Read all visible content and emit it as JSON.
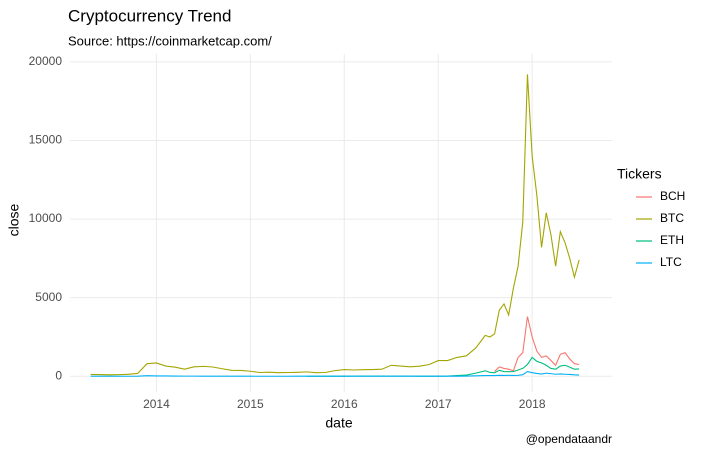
{
  "chart_data": {
    "type": "line",
    "title": "Cryptocurrency Trend",
    "subtitle": "Source: https://coinmarketcap.com/",
    "x_label": "date",
    "y_label": "close",
    "legend_title": "Tickers",
    "legend_position": "right",
    "caption": "@opendataandr",
    "grid": true,
    "x": [
      2013.3,
      2013.4,
      2013.5,
      2013.6,
      2013.7,
      2013.8,
      2013.9,
      2014.0,
      2014.1,
      2014.2,
      2014.3,
      2014.4,
      2014.5,
      2014.6,
      2014.7,
      2014.8,
      2014.9,
      2015.0,
      2015.1,
      2015.2,
      2015.3,
      2015.4,
      2015.5,
      2015.6,
      2015.7,
      2015.8,
      2015.9,
      2016.0,
      2016.1,
      2016.2,
      2016.3,
      2016.4,
      2016.5,
      2016.6,
      2016.7,
      2016.8,
      2016.9,
      2017.0,
      2017.1,
      2017.2,
      2017.3,
      2017.4,
      2017.5,
      2017.55,
      2017.6,
      2017.65,
      2017.7,
      2017.75,
      2017.8,
      2017.85,
      2017.9,
      2017.95,
      2018.0,
      2018.05,
      2018.1,
      2018.15,
      2018.2,
      2018.25,
      2018.3,
      2018.35,
      2018.4,
      2018.45,
      2018.5
    ],
    "xlim": [
      2013.08,
      2018.85
    ],
    "xticks": [
      2014,
      2015,
      2016,
      2017,
      2018
    ],
    "ylim": [
      -1000,
      20500
    ],
    "yticks": [
      0,
      5000,
      10000,
      15000,
      20000
    ],
    "series": [
      {
        "name": "BCH",
        "color": "#f8766d",
        "values": [
          null,
          null,
          null,
          null,
          null,
          null,
          null,
          null,
          null,
          null,
          null,
          null,
          null,
          null,
          null,
          null,
          null,
          null,
          null,
          null,
          null,
          null,
          null,
          null,
          null,
          null,
          null,
          null,
          null,
          null,
          null,
          null,
          null,
          null,
          null,
          null,
          null,
          null,
          null,
          null,
          null,
          null,
          null,
          null,
          300,
          600,
          500,
          450,
          350,
          1200,
          1500,
          3800,
          2500,
          1600,
          1200,
          1300,
          1000,
          700,
          1400,
          1500,
          1100,
          800,
          750
        ]
      },
      {
        "name": "BTC",
        "color": "#a3a500",
        "values": [
          120,
          110,
          90,
          105,
          125,
          180,
          800,
          850,
          650,
          580,
          450,
          600,
          630,
          590,
          480,
          380,
          370,
          320,
          240,
          260,
          230,
          240,
          255,
          280,
          230,
          240,
          360,
          430,
          400,
          420,
          430,
          450,
          700,
          650,
          600,
          640,
          740,
          1000,
          1000,
          1200,
          1300,
          1800,
          2600,
          2500,
          2700,
          4200,
          4600,
          3900,
          5600,
          7000,
          9800,
          19200,
          14000,
          11500,
          8200,
          10400,
          9000,
          7000,
          9200,
          8500,
          7500,
          6300,
          7400
        ]
      },
      {
        "name": "ETH",
        "color": "#00bf7d",
        "values": [
          null,
          null,
          null,
          null,
          null,
          null,
          null,
          null,
          null,
          null,
          null,
          null,
          null,
          null,
          null,
          null,
          null,
          null,
          null,
          null,
          null,
          null,
          null,
          1,
          1,
          1,
          3,
          8,
          10,
          12,
          14,
          12,
          10,
          13,
          10,
          8,
          8,
          8,
          12,
          45,
          80,
          200,
          350,
          250,
          220,
          380,
          300,
          290,
          300,
          400,
          500,
          750,
          1200,
          950,
          850,
          700,
          500,
          450,
          650,
          700,
          580,
          450,
          470
        ]
      },
      {
        "name": "LTC",
        "color": "#00b0f6",
        "values": [
          4,
          3,
          3,
          3,
          2,
          3,
          35,
          25,
          20,
          12,
          10,
          10,
          8,
          6,
          5,
          4,
          3,
          3,
          2,
          1.5,
          1.5,
          2,
          4,
          3,
          3,
          3,
          3,
          3,
          3,
          3,
          4,
          4,
          4,
          4,
          4,
          4,
          4,
          4,
          4,
          5,
          15,
          30,
          45,
          45,
          45,
          60,
          55,
          60,
          55,
          60,
          100,
          300,
          230,
          180,
          140,
          200,
          170,
          130,
          150,
          130,
          115,
          90,
          80
        ]
      }
    ]
  }
}
